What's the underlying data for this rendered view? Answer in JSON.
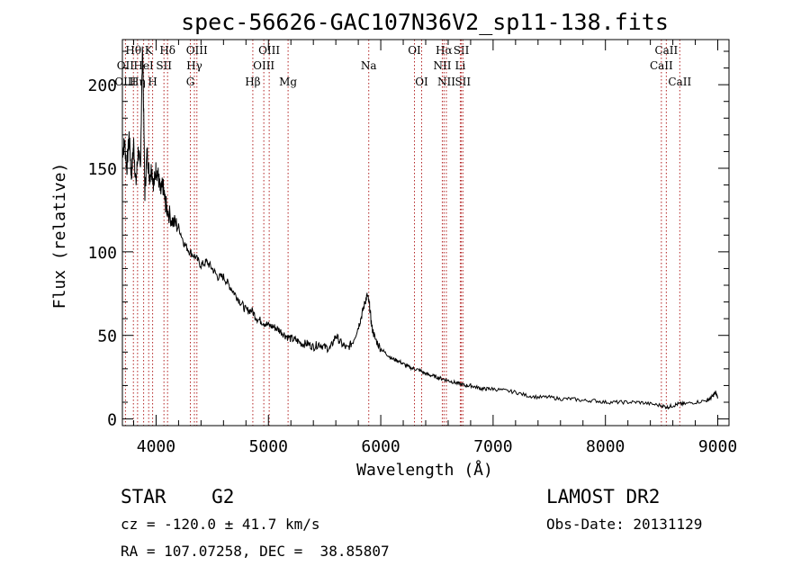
{
  "chart_data": {
    "type": "line",
    "title": "spec-56626-GAC107N36V2_sp11-138.fits",
    "xlabel": "Wavelength (Å)",
    "ylabel": "Flux (relative)",
    "xlim": [
      3700,
      9100
    ],
    "ylim": [
      -4,
      227
    ],
    "xticks": [
      4000,
      5000,
      6000,
      7000,
      8000,
      9000
    ],
    "yticks": [
      0,
      50,
      100,
      150,
      200
    ],
    "grid": false,
    "spectrum": {
      "x": [
        3700,
        3720,
        3740,
        3760,
        3780,
        3800,
        3820,
        3840,
        3860,
        3880,
        3900,
        3920,
        3940,
        3960,
        3980,
        4000,
        4020,
        4040,
        4060,
        4080,
        4100,
        4150,
        4200,
        4250,
        4300,
        4350,
        4400,
        4450,
        4500,
        4550,
        4600,
        4650,
        4700,
        4750,
        4800,
        4850,
        4900,
        4950,
        5000,
        5050,
        5100,
        5150,
        5200,
        5250,
        5300,
        5350,
        5400,
        5450,
        5500,
        5550,
        5600,
        5650,
        5700,
        5750,
        5800,
        5830,
        5860,
        5880,
        5900,
        5920,
        5950,
        6000,
        6050,
        6100,
        6150,
        6200,
        6250,
        6300,
        6350,
        6400,
        6450,
        6500,
        6550,
        6600,
        6650,
        6700,
        6750,
        6800,
        6850,
        6900,
        6950,
        7000,
        7100,
        7200,
        7300,
        7400,
        7500,
        7600,
        7700,
        7800,
        7900,
        8000,
        8100,
        8200,
        8300,
        8400,
        8500,
        8550,
        8600,
        8650,
        8700,
        8800,
        8900,
        8930,
        8960,
        8980,
        9000
      ],
      "y": [
        160,
        165,
        150,
        170,
        145,
        165,
        140,
        160,
        150,
        225,
        135,
        160,
        145,
        150,
        140,
        150,
        145,
        135,
        140,
        130,
        125,
        118,
        115,
        105,
        100,
        97,
        92,
        94,
        90,
        85,
        85,
        80,
        75,
        70,
        65,
        65,
        60,
        58,
        56,
        55,
        53,
        50,
        48,
        47,
        45,
        45,
        43,
        45,
        43,
        42,
        50,
        45,
        42,
        46,
        55,
        62,
        70,
        74,
        68,
        55,
        48,
        42,
        39,
        36,
        35,
        33,
        31,
        30,
        29,
        27,
        26,
        25,
        24,
        23,
        22,
        21,
        20,
        20,
        19,
        18,
        18,
        18,
        17,
        16,
        14,
        13,
        13,
        12,
        12,
        11,
        11,
        10,
        10,
        10,
        10,
        9,
        8,
        7,
        8,
        9,
        9,
        10,
        11,
        12,
        14,
        16,
        13
      ]
    },
    "lines": [
      {
        "label": "Hθ",
        "x": 3798,
        "row": 1
      },
      {
        "label": "OII",
        "x": 3727,
        "row": 2
      },
      {
        "label": "OIII",
        "x": 3727,
        "row": 3
      },
      {
        "label": "K",
        "x": 3934,
        "row": 1
      },
      {
        "label": "HeI",
        "x": 3889,
        "row": 2
      },
      {
        "label": "Hη",
        "x": 3835,
        "row": 3
      },
      {
        "label": "Hδ",
        "x": 4102,
        "row": 1
      },
      {
        "label": "SII",
        "x": 4070,
        "row": 2
      },
      {
        "label": "H",
        "x": 3969,
        "row": 3
      },
      {
        "label": "OIII",
        "x": 4363,
        "row": 1
      },
      {
        "label": "Hγ",
        "x": 4341,
        "row": 2
      },
      {
        "label": "G",
        "x": 4305,
        "row": 3
      },
      {
        "label": "OIII",
        "x": 5007,
        "row": 1
      },
      {
        "label": "OIII",
        "x": 4959,
        "row": 2
      },
      {
        "label": "Hβ",
        "x": 4861,
        "row": 3
      },
      {
        "label": "Mg",
        "x": 5175,
        "row": 3
      },
      {
        "label": "Na",
        "x": 5893,
        "row": 2
      },
      {
        "label": "OI",
        "x": 6300,
        "row": 1
      },
      {
        "label": "OI",
        "x": 6364,
        "row": 3
      },
      {
        "label": "Hα",
        "x": 6563,
        "row": 1
      },
      {
        "label": "SII",
        "x": 6717,
        "row": 1
      },
      {
        "label": "NII",
        "x": 6548,
        "row": 2
      },
      {
        "label": "Li",
        "x": 6708,
        "row": 2
      },
      {
        "label": "NII",
        "x": 6584,
        "row": 3
      },
      {
        "label": "SII",
        "x": 6731,
        "row": 3
      },
      {
        "label": "CaII",
        "x": 8542,
        "row": 1
      },
      {
        "label": "CaII",
        "x": 8498,
        "row": 2
      },
      {
        "label": "CaII",
        "x": 8662,
        "row": 3
      }
    ]
  },
  "info": {
    "class_line": "STAR    G2",
    "cz_line": "cz = -120.0 ± 41.7 km/s",
    "radec_line": "RA = 107.07258, DEC =  38.85807",
    "survey": "LAMOST DR2",
    "obs_date": "Obs-Date: 20131129"
  },
  "colors": {
    "axis": "#000000",
    "spectrum": "#000000",
    "line_marker": "#b22222"
  }
}
